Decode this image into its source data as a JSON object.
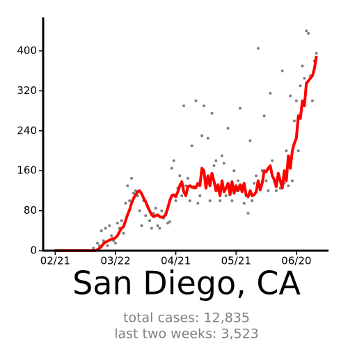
{
  "chart_data": {
    "type": "scatter-line",
    "title": "San Diego, CA",
    "subtitle": [
      "total cases: 12,835",
      "last two weeks: 3,523"
    ],
    "x": [
      "02/21",
      "02/22",
      "02/23",
      "02/24",
      "02/25",
      "02/26",
      "02/27",
      "02/28",
      "02/29",
      "03/01",
      "03/02",
      "03/03",
      "03/04",
      "03/05",
      "03/06",
      "03/07",
      "03/08",
      "03/09",
      "03/10",
      "03/11",
      "03/12",
      "03/13",
      "03/14",
      "03/15",
      "03/16",
      "03/17",
      "03/18",
      "03/19",
      "03/20",
      "03/21",
      "03/22",
      "03/23",
      "03/24",
      "03/25",
      "03/26",
      "03/27",
      "03/28",
      "03/29",
      "03/30",
      "03/31",
      "04/01",
      "04/02",
      "04/03",
      "04/04",
      "04/05",
      "04/06",
      "04/07",
      "04/08",
      "04/09",
      "04/10",
      "04/11",
      "04/12",
      "04/13",
      "04/14",
      "04/15",
      "04/16",
      "04/17",
      "04/18",
      "04/19",
      "04/20",
      "04/21",
      "04/22",
      "04/23",
      "04/24",
      "04/25",
      "04/26",
      "04/27",
      "04/28",
      "04/29",
      "04/30",
      "05/01",
      "05/02",
      "05/03",
      "05/04",
      "05/05",
      "05/06",
      "05/07",
      "05/08",
      "05/09",
      "05/10",
      "05/11",
      "05/12",
      "05/13",
      "05/14",
      "05/15",
      "05/16",
      "05/17",
      "05/18",
      "05/19",
      "05/20",
      "05/21",
      "05/22",
      "05/23",
      "05/24",
      "05/25",
      "05/26",
      "05/27",
      "05/28",
      "05/29",
      "05/30",
      "05/31",
      "06/01",
      "06/02",
      "06/03",
      "06/04",
      "06/05",
      "06/06",
      "06/07",
      "06/08",
      "06/09",
      "06/10",
      "06/11",
      "06/12",
      "06/13",
      "06/14",
      "06/15",
      "06/16",
      "06/17",
      "06/18",
      "06/19",
      "06/20",
      "06/21",
      "06/22",
      "06/23",
      "06/24",
      "06/25",
      "06/26",
      "06/27",
      "06/28",
      "06/29",
      "06/30"
    ],
    "series": [
      {
        "color": "#808080",
        "values": [
          0,
          0,
          0,
          0,
          0,
          0,
          0,
          0,
          0,
          0,
          0,
          0,
          0,
          0,
          0,
          0,
          0,
          0,
          0,
          5,
          0,
          15,
          10,
          40,
          20,
          45,
          10,
          50,
          30,
          20,
          15,
          55,
          45,
          60,
          35,
          95,
          130,
          100,
          145,
          115,
          120,
          110,
          80,
          50,
          100,
          70,
          90,
          60,
          45,
          75,
          85,
          50,
          45,
          80,
          65,
          75,
          55,
          58,
          165,
          180,
          100,
          125,
          150,
          110,
          290,
          130,
          145,
          100,
          210,
          125,
          300,
          95,
          110,
          230,
          290,
          130,
          225,
          100,
          275,
          170,
          180,
          120,
          100,
          190,
          175,
          110,
          245,
          130,
          100,
          160,
          120,
          140,
          285,
          130,
          95,
          110,
          75,
          220,
          100,
          135,
          150,
          405,
          130,
          160,
          270,
          140,
          120,
          315,
          180,
          140,
          120,
          150,
          125,
          360,
          135,
          200,
          130,
          310,
          140,
          260,
          300,
          200,
          330,
          370,
          345,
          440,
          435,
          350,
          300,
          380,
          395
        ]
      },
      {
        "color": "#ff0000",
        "values": [
          0,
          0,
          0,
          0,
          0,
          0,
          0,
          0,
          0,
          0,
          0,
          0,
          0,
          0,
          0,
          0,
          0,
          0,
          0,
          0,
          0,
          2,
          5,
          8,
          14,
          17,
          19,
          21,
          23,
          24,
          26,
          30,
          38,
          45,
          48,
          60,
          72,
          82,
          95,
          105,
          112,
          118,
          120,
          114,
          105,
          98,
          88,
          80,
          72,
          68,
          70,
          72,
          68,
          67,
          68,
          72,
          85,
          100,
          110,
          112,
          108,
          118,
          130,
          138,
          118,
          110,
          128,
          130,
          127,
          128,
          126,
          135,
          130,
          165,
          160,
          125,
          150,
          130,
          155,
          140,
          120,
          132,
          110,
          140,
          118,
          125,
          135,
          112,
          138,
          115,
          130,
          120,
          132,
          118,
          135,
          112,
          108,
          120,
          110,
          112,
          118,
          140,
          122,
          135,
          160,
          158,
          165,
          170,
          150,
          142,
          128,
          155,
          140,
          125,
          160,
          140,
          190,
          165,
          200,
          215,
          225,
          270,
          265,
          300,
          290,
          335,
          340,
          345,
          350,
          365,
          390
        ]
      }
    ],
    "xlim": [
      "02/15",
      "07/06"
    ],
    "xticks": [
      "02/21",
      "03/22",
      "04/21",
      "05/21",
      "06/20"
    ],
    "ylim": [
      0,
      467
    ],
    "yticks": [
      0,
      80,
      160,
      240,
      320,
      400
    ]
  }
}
